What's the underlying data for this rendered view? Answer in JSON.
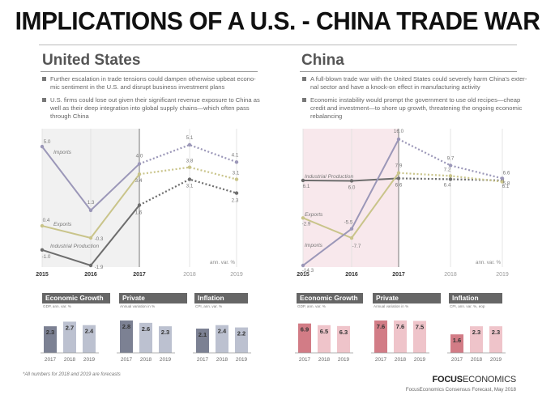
{
  "title": "IMPLICATIONS OF A U.S. - CHINA TRADE WAR",
  "us": {
    "name": "United States",
    "bullets": [
      [
        "Further escalation in trade tensions could dampen otherwise upbeat econo-",
        "mic sentiment in the U.S. and disrupt business investment plans"
      ],
      [
        "U.S. firms could lose out given their significant revenue exposure to China as",
        "well  as their deep integration into global supply chains—which often pass",
        "through China"
      ]
    ]
  },
  "china": {
    "name": "China",
    "bullets": [
      [
        "A full-blown trade war with the United States could severely harm China's exter-",
        "nal  sector and have a knock-on effect in manufacturing activity"
      ],
      [
        "Economic instability would prompt the government to use old recipes—cheap",
        "credit and investment—to shore up growth, threatening the ongoing economic",
        "rebalancing"
      ]
    ]
  },
  "unit_label": "ann. var. %",
  "footnote": "*All numbers for 2018 and 2019  are forecasts",
  "brand": {
    "focus": "FOCUS",
    "economics": "ECONOMICS"
  },
  "source": "FocusEconomics Consensus Forecast,  May 2018",
  "colors": {
    "imports": "#9b97b8",
    "exports": "#c9c48a",
    "industrial": "#6d6d6d",
    "us_bar_dark": "#7c8193",
    "us_bar_light": "#bcc1d0",
    "cn_bar_dark": "#d27c86",
    "cn_bar_light": "#efc4ca",
    "header": "#666666"
  },
  "chart_data": [
    {
      "type": "line",
      "panel": "United States",
      "x": [
        "2015",
        "2016",
        "2017",
        "2018",
        "2019"
      ],
      "forecast_from": "2017",
      "ylabel": "ann. var. %",
      "series": [
        {
          "name": "Imports",
          "values": [
            5.0,
            1.3,
            4.0,
            5.1,
            4.1
          ],
          "labels": [
            "5.0",
            "1.3",
            "4.0",
            "5.1",
            "4.1"
          ]
        },
        {
          "name": "Exports",
          "values": [
            0.4,
            -0.3,
            3.4,
            3.8,
            3.1
          ],
          "labels": [
            "0.4",
            "-0.3",
            "3.4",
            "3.8",
            "3.1"
          ]
        },
        {
          "name": "Industrial Production",
          "values": [
            -1.0,
            -1.9,
            1.6,
            3.1,
            2.3
          ],
          "labels": [
            "-1.0",
            "-1.9",
            "1.6",
            "3.1",
            "2.3"
          ]
        }
      ]
    },
    {
      "type": "line",
      "panel": "China",
      "x": [
        "2015",
        "2016",
        "2017",
        "2018",
        "2019"
      ],
      "forecast_from": "2017",
      "ylabel": "ann. var. %",
      "series": [
        {
          "name": "Industrial Production",
          "values": [
            6.1,
            6.0,
            6.6,
            6.4,
            6.1
          ],
          "labels": [
            "6.1",
            "6.0",
            "6.6",
            "6.4",
            "6.1"
          ]
        },
        {
          "name": "Exports",
          "values": [
            -2.9,
            -7.7,
            7.9,
            7.2,
            5.8
          ],
          "labels": [
            "-2.9",
            "-7.7",
            "7.9",
            "7.2",
            "5.8"
          ]
        },
        {
          "name": "Imports",
          "values": [
            -14.3,
            -5.5,
            16.0,
            9.7,
            6.6
          ],
          "labels": [
            "-14.3",
            "-5.5",
            "16.0",
            "9.7",
            "6.6"
          ]
        }
      ]
    },
    {
      "type": "bar",
      "panel": "United States",
      "title": "Economic Growth",
      "subtitle": "GDP, ann. var. %",
      "categories": [
        "2017",
        "2018",
        "2019"
      ],
      "values": [
        2.3,
        2.7,
        2.4
      ],
      "labels": [
        "2.3",
        "2.7",
        "2.4"
      ]
    },
    {
      "type": "bar",
      "panel": "United States",
      "title": "Private Consumption",
      "subtitle": "Annual variation in %",
      "categories": [
        "2017",
        "2018",
        "2019"
      ],
      "values": [
        2.8,
        2.6,
        2.3
      ],
      "labels": [
        "2.8",
        "2.6",
        "2.3"
      ]
    },
    {
      "type": "bar",
      "panel": "United States",
      "title": "Inflation",
      "subtitle": "CPI, ann. var. %",
      "categories": [
        "2017",
        "2018",
        "2019"
      ],
      "values": [
        2.1,
        2.4,
        2.2
      ],
      "labels": [
        "2.1",
        "2.4",
        "2.2"
      ]
    },
    {
      "type": "bar",
      "panel": "China",
      "title": "Economic Growth",
      "subtitle": "GDP, ann. var. %",
      "categories": [
        "2017",
        "2018",
        "2019"
      ],
      "values": [
        6.9,
        6.5,
        6.3
      ],
      "labels": [
        "6.9",
        "6.5",
        "6.3"
      ]
    },
    {
      "type": "bar",
      "panel": "China",
      "title": "Private Consumption",
      "subtitle": "Annual variation in %",
      "categories": [
        "2017",
        "2018",
        "2019"
      ],
      "values": [
        7.6,
        7.6,
        7.5
      ],
      "labels": [
        "7.6",
        "7.6",
        "7.5"
      ]
    },
    {
      "type": "bar",
      "panel": "China",
      "title": "Inflation",
      "subtitle": "CPI, ann. var. %, eop",
      "categories": [
        "2017",
        "2018",
        "2019"
      ],
      "values": [
        1.6,
        2.3,
        2.3
      ],
      "labels": [
        "1.6",
        "2.3",
        "2.3"
      ]
    }
  ]
}
